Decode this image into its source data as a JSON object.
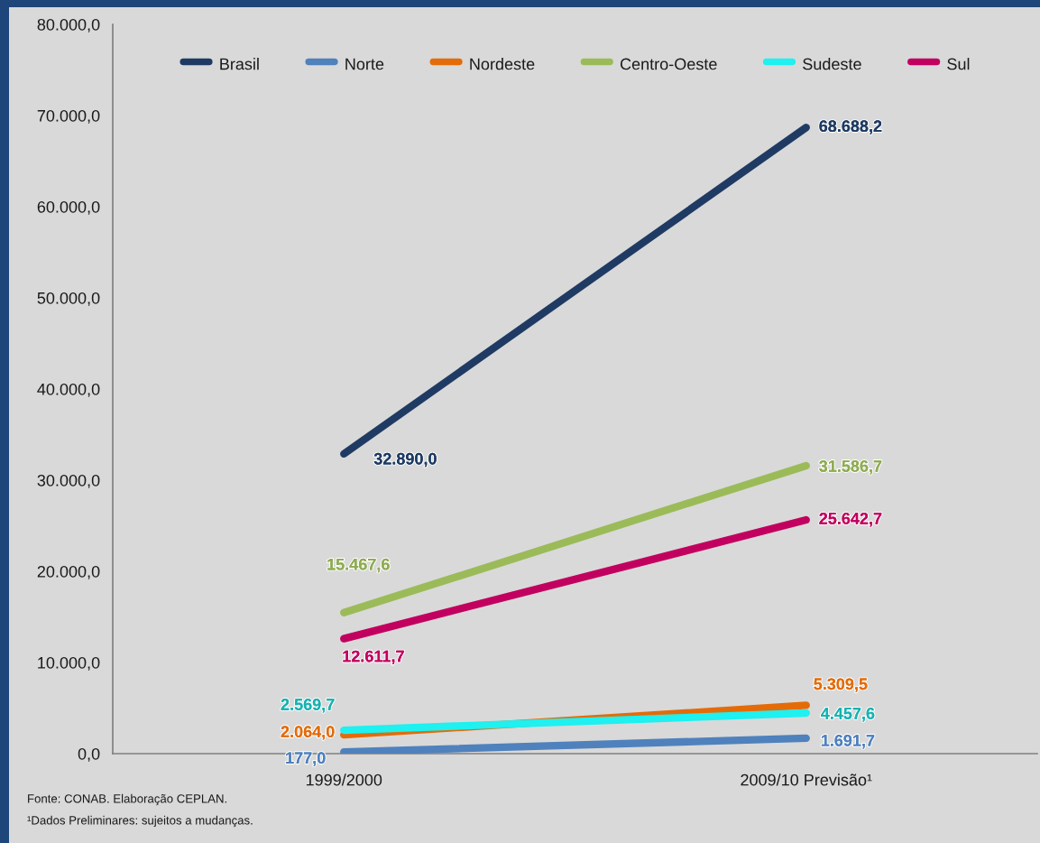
{
  "chart_data": {
    "type": "line",
    "categories": [
      "1999/2000",
      "2009/10 Previsão¹"
    ],
    "series": [
      {
        "name": "Brasil",
        "color": "#1f3b63",
        "values": [
          32890.0,
          68688.2
        ],
        "value_labels": [
          "32.890,0",
          "68.688,2"
        ]
      },
      {
        "name": "Norte",
        "color": "#4f81bd",
        "values": [
          177.0,
          1691.7
        ],
        "value_labels": [
          "177,0",
          "1.691,7"
        ]
      },
      {
        "name": "Nordeste",
        "color": "#e36c09",
        "values": [
          2064.0,
          5309.5
        ],
        "value_labels": [
          "2.064,0",
          "5.309,5"
        ]
      },
      {
        "name": "Centro-Oeste",
        "color": "#9bbb59",
        "values": [
          15467.6,
          31586.7
        ],
        "value_labels": [
          "15.467,6",
          "31.586,7"
        ]
      },
      {
        "name": "Sudeste",
        "color": "#1ff0f0",
        "values": [
          2569.7,
          4457.6
        ],
        "value_labels": [
          "2.569,7",
          "4.457,6"
        ]
      },
      {
        "name": "Sul",
        "color": "#c2005f",
        "values": [
          12611.7,
          25642.7
        ],
        "value_labels": [
          "12.611,7",
          "25.642,7"
        ]
      }
    ],
    "ylim": [
      0,
      80000
    ],
    "yticks": [
      {
        "value": 0,
        "label": "0,0"
      },
      {
        "value": 10000,
        "label": "10.000,0"
      },
      {
        "value": 20000,
        "label": "20.000,0"
      },
      {
        "value": 30000,
        "label": "30.000,0"
      },
      {
        "value": 40000,
        "label": "40.000,0"
      },
      {
        "value": 50000,
        "label": "50.000,0"
      },
      {
        "value": 60000,
        "label": "60.000,0"
      },
      {
        "value": 70000,
        "label": "70.000,0"
      },
      {
        "value": 80000,
        "label": "80.000,0"
      }
    ],
    "grid": false,
    "legend": "top",
    "annotations": [
      "Fonte: CONAB. Elaboração CEPLAN.",
      "¹Dados Preliminares: sujeitos a mudanças."
    ]
  }
}
